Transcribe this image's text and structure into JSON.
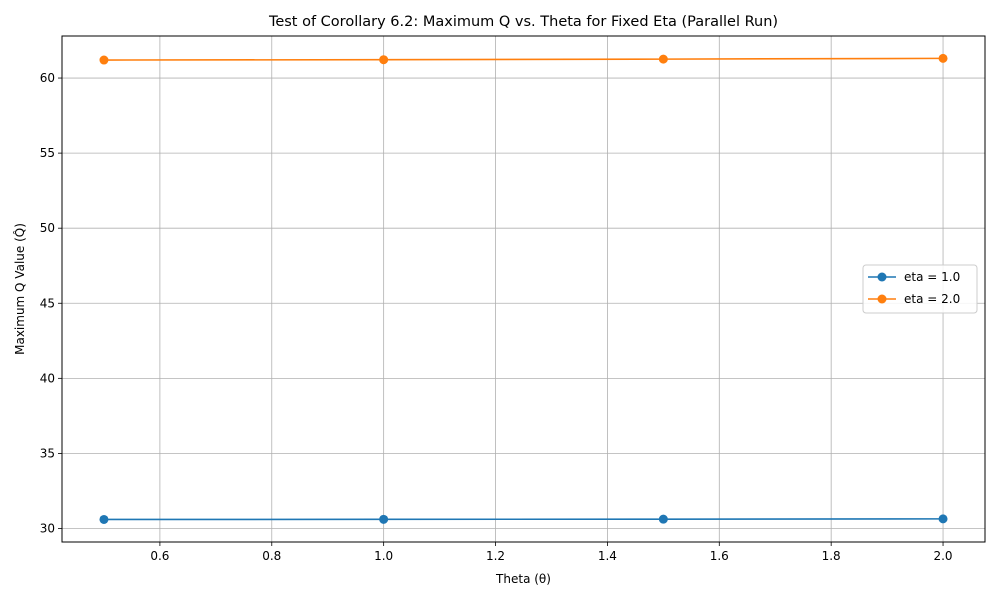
{
  "chart_data": {
    "type": "line",
    "title": "Test of Corollary 6.2: Maximum Q vs. Theta for Fixed Eta (Parallel Run)",
    "xlabel": "Theta (θ)",
    "ylabel": "Maximum Q Value (Q̂)",
    "x": [
      0.5,
      1.0,
      1.5,
      2.0
    ],
    "xlim": [
      0.425,
      2.075
    ],
    "ylim": [
      29.1,
      62.8
    ],
    "xticks": [
      0.6,
      0.8,
      1.0,
      1.2,
      1.4,
      1.6,
      1.8,
      2.0
    ],
    "xtick_labels": [
      "0.6",
      "0.8",
      "1.0",
      "1.2",
      "1.4",
      "1.6",
      "1.8",
      "2.0"
    ],
    "yticks": [
      30,
      35,
      40,
      45,
      50,
      55,
      60
    ],
    "ytick_labels": [
      "30",
      "35",
      "40",
      "45",
      "50",
      "55",
      "60"
    ],
    "grid": true,
    "legend_position": "center-right",
    "series": [
      {
        "name": "eta = 1.0",
        "color": "#1f77b4",
        "values": [
          30.6,
          30.61,
          30.62,
          30.64
        ]
      },
      {
        "name": "eta = 2.0",
        "color": "#ff7f0e",
        "values": [
          61.2,
          61.22,
          61.26,
          61.31
        ]
      }
    ]
  }
}
